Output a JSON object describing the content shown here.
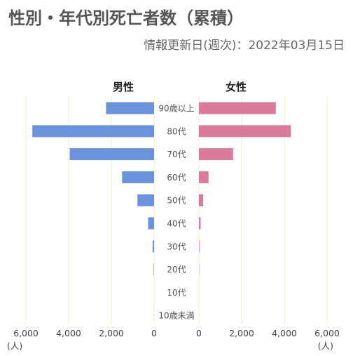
{
  "title": "性別・年代別死亡者数（累積）",
  "subtitle": "情報更新日(週次)：2022年03月15日",
  "chart_data": {
    "type": "bar",
    "orientation": "horizontal-population-pyramid",
    "categories": [
      "90歳以上",
      "80代",
      "70代",
      "60代",
      "50代",
      "40代",
      "30代",
      "20代",
      "10代",
      "10歳未満"
    ],
    "series": [
      {
        "name": "男性",
        "color": "#6b93dc",
        "values": [
          2250,
          5700,
          3950,
          1500,
          780,
          280,
          70,
          20,
          0,
          0
        ]
      },
      {
        "name": "女性",
        "color": "#db7b9c",
        "values": [
          3600,
          4300,
          1600,
          450,
          200,
          80,
          25,
          10,
          0,
          0
        ]
      }
    ],
    "xlim": [
      0,
      6000
    ],
    "xticks_left": [
      "6,000",
      "4,000",
      "2,000",
      "0"
    ],
    "xticks_right": [
      "0",
      "2,000",
      "4,000",
      "6,000"
    ],
    "unit_label": "(人)",
    "grid": true
  }
}
